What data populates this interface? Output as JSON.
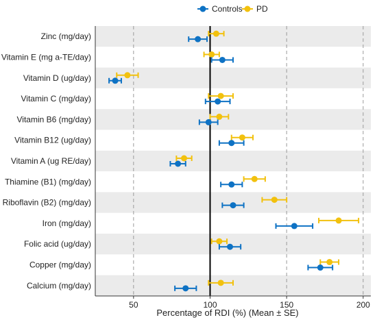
{
  "chart_data": {
    "type": "dot-errorbar",
    "title": "",
    "xlabel": "Percentage of RDI (%) (Mean ± SE)",
    "ylabel": "",
    "xlim": [
      25,
      205
    ],
    "xticks": [
      50,
      100,
      150,
      200
    ],
    "reference_line_x": 100,
    "grid": "dashed vertical at 50, 150, 200; alternating row bands",
    "legend_position": "top-center",
    "categories": [
      "Zinc (mg/day)",
      "Vitamin E (mg a-TE/day)",
      "Vitamin D (ug/day)",
      "Vitamin C (mg/day)",
      "Vitamin B6 (mg/day)",
      "Vitamin B12 (ug/day)",
      "Vitamin A (ug RE/day)",
      "Thiamine (B1) (mg/day)",
      "Riboflavin (B2) (mg/day)",
      "Iron (mg/day)",
      "Folic acid (ug/day)",
      "Copper (mg/day)",
      "Calcium (mg/day)"
    ],
    "series": [
      {
        "name": "Controls",
        "color": "#0e72c4",
        "values": [
          92,
          108,
          38,
          105,
          99,
          114,
          79,
          114,
          115,
          155,
          113,
          172,
          84
        ],
        "errors": [
          6,
          7,
          4,
          8,
          6,
          8,
          5,
          7,
          7,
          12,
          7,
          8,
          7
        ]
      },
      {
        "name": "PD",
        "color": "#f2c10e",
        "values": [
          104,
          101,
          46,
          107,
          106,
          121,
          83,
          129,
          142,
          184,
          106,
          178,
          107
        ],
        "errors": [
          5,
          5,
          7,
          8,
          6,
          7,
          5,
          7,
          8,
          13,
          5,
          6,
          8
        ]
      }
    ]
  }
}
